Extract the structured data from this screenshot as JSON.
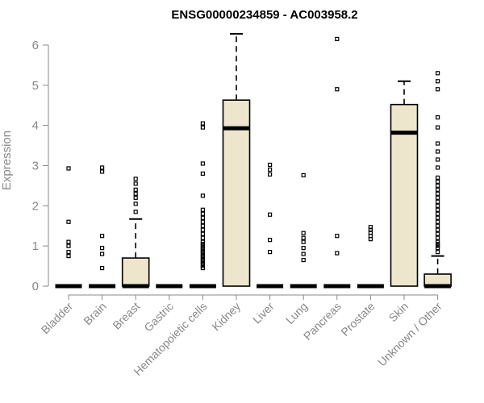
{
  "chart_data": {
    "type": "boxplot",
    "title": "ENSG00000234859 - AC003958.2",
    "xlabel": "",
    "ylabel": "Expression",
    "ylim": [
      0,
      6.3
    ],
    "yticks": [
      0,
      1,
      2,
      3,
      4,
      5,
      6
    ],
    "colors": {
      "box_fill": "#ede6cc",
      "box_stroke": "#000000",
      "axis": "#888888"
    },
    "categories": [
      "Bladder",
      "Brain",
      "Breast",
      "Gastric",
      "Hematopoietic cells",
      "Kidney",
      "Liver",
      "Lung",
      "Pancreas",
      "Prostate",
      "Skin",
      "Unknown / Other"
    ],
    "boxes": [
      {
        "name": "Bladder",
        "q1": 0,
        "median": 0,
        "q3": 0,
        "whisker_low": 0,
        "whisker_high": 0,
        "outliers": [
          0.75,
          0.85,
          1.0,
          1.1,
          1.6,
          2.93
        ]
      },
      {
        "name": "Brain",
        "q1": 0,
        "median": 0,
        "q3": 0,
        "whisker_low": 0,
        "whisker_high": 0,
        "outliers": [
          0.45,
          0.8,
          0.95,
          1.25,
          2.85,
          2.95
        ]
      },
      {
        "name": "Breast",
        "q1": 0,
        "median": 0,
        "q3": 0.7,
        "whisker_low": 0,
        "whisker_high": 1.67,
        "outliers": [
          1.85,
          2.05,
          2.2,
          2.3,
          2.4,
          2.55,
          2.67
        ]
      },
      {
        "name": "Gastric",
        "q1": 0,
        "median": 0,
        "q3": 0,
        "whisker_low": 0,
        "whisker_high": 0,
        "outliers": []
      },
      {
        "name": "Hematopoietic cells",
        "q1": 0,
        "median": 0,
        "q3": 0,
        "whisker_low": 0,
        "whisker_high": 0,
        "outliers": [
          0.45,
          0.5,
          0.55,
          0.6,
          0.65,
          0.7,
          0.75,
          0.8,
          0.85,
          0.9,
          0.95,
          1.0,
          1.05,
          1.1,
          1.2,
          1.3,
          1.4,
          1.5,
          1.6,
          1.7,
          1.8,
          1.9,
          2.25,
          2.8,
          3.05,
          3.95,
          4.05
        ]
      },
      {
        "name": "Kidney",
        "q1": 0,
        "median": 3.93,
        "q3": 4.63,
        "whisker_low": 0,
        "whisker_high": 6.28,
        "outliers": []
      },
      {
        "name": "Liver",
        "q1": 0,
        "median": 0,
        "q3": 0,
        "whisker_low": 0,
        "whisker_high": 0,
        "outliers": [
          0.85,
          1.15,
          1.78,
          2.78,
          2.9,
          3.02
        ]
      },
      {
        "name": "Lung",
        "q1": 0,
        "median": 0,
        "q3": 0,
        "whisker_low": 0,
        "whisker_high": 0,
        "outliers": [
          0.65,
          0.8,
          0.95,
          1.1,
          1.2,
          1.32,
          2.76
        ]
      },
      {
        "name": "Pancreas",
        "q1": 0,
        "median": 0,
        "q3": 0,
        "whisker_low": 0,
        "whisker_high": 0,
        "outliers": [
          0.82,
          1.25,
          4.9,
          6.15
        ]
      },
      {
        "name": "Prostate",
        "q1": 0,
        "median": 0,
        "q3": 0,
        "whisker_low": 0,
        "whisker_high": 0,
        "outliers": [
          1.17,
          1.25,
          1.33,
          1.4,
          1.47
        ]
      },
      {
        "name": "Skin",
        "q1": 0,
        "median": 3.82,
        "q3": 4.52,
        "whisker_low": 0,
        "whisker_high": 5.1,
        "outliers": []
      },
      {
        "name": "Unknown / Other",
        "q1": 0,
        "median": 0,
        "q3": 0.3,
        "whisker_low": 0,
        "whisker_high": 0.75,
        "outliers": [
          0.85,
          0.95,
          1.0,
          1.05,
          1.1,
          1.2,
          1.3,
          1.4,
          1.5,
          1.6,
          1.7,
          1.8,
          1.9,
          2.0,
          2.1,
          2.2,
          2.3,
          2.4,
          2.5,
          2.6,
          2.7,
          2.95,
          3.15,
          3.35,
          3.55,
          3.95,
          4.2,
          4.9,
          5.1,
          5.3
        ]
      }
    ]
  }
}
